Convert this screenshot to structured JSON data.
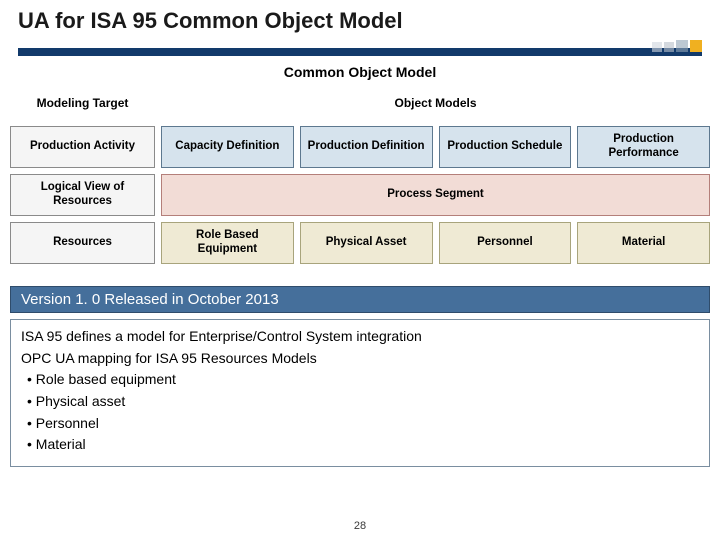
{
  "title": "UA for ISA 95 Common Object Model",
  "subtitle": "Common Object Model",
  "grid": {
    "head_left": "Modeling Target",
    "head_right": "Object Models",
    "rows": [
      {
        "label": "Production Activity",
        "cell_class": "dcell-a",
        "cells": [
          "Capacity Definition",
          "Production Definition",
          "Production Schedule",
          "Production Performance"
        ]
      },
      {
        "label": "Logical View of Resources",
        "cell_class": "dcell-b",
        "span": true,
        "span_text": "Process Segment"
      },
      {
        "label": "Resources",
        "cell_class": "dcell-c",
        "cells": [
          "Role Based Equipment",
          "Physical Asset",
          "Personnel",
          "Material"
        ]
      }
    ]
  },
  "banner": "Version 1. 0 Released  in October 2013",
  "body": {
    "lines": [
      "ISA 95 defines a model for Enterprise/Control System integration",
      "OPC UA mapping for ISA 95 Resources Models"
    ],
    "bullets": [
      "Role based equipment",
      "Physical asset",
      "Personnel",
      "Material"
    ]
  },
  "page_number": "28",
  "colors": {
    "title_bar": "#123a6b",
    "banner_bg": "#456f9b",
    "banner_border": "#2f4c6b",
    "row_a_bg": "#d6e3ed",
    "row_b_bg": "#f2dcd6",
    "row_c_bg": "#efead4"
  }
}
